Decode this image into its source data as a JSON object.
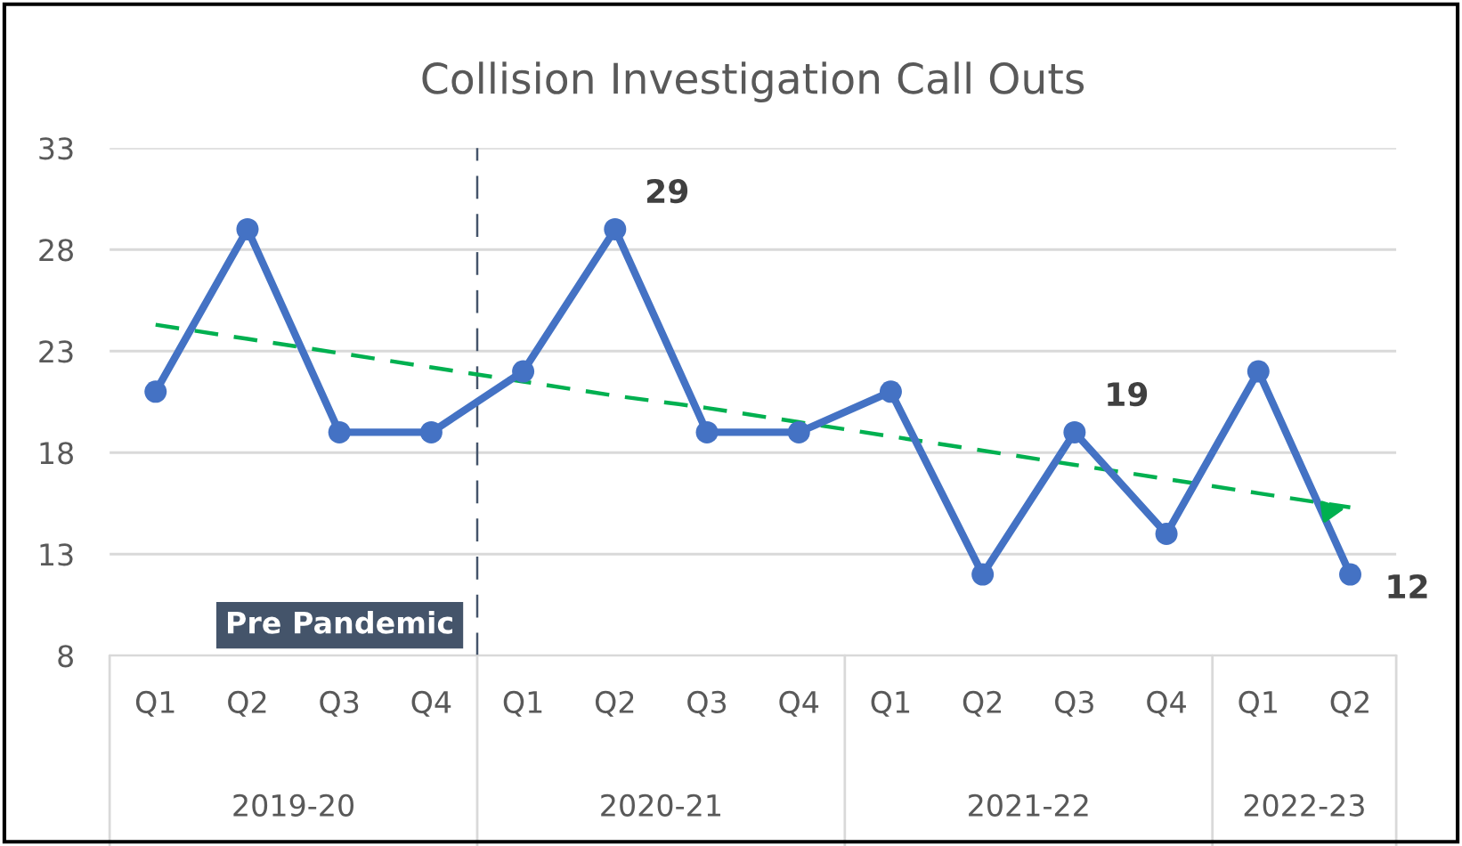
{
  "chart_data": {
    "type": "line",
    "title": "Collision Investigation Call Outs",
    "categories": [
      "Q1",
      "Q2",
      "Q3",
      "Q4",
      "Q1",
      "Q2",
      "Q3",
      "Q4",
      "Q1",
      "Q2",
      "Q3",
      "Q4",
      "Q1",
      "Q2"
    ],
    "series": [
      {
        "color": "#4472c4",
        "marker": "circle",
        "line_style": "solid",
        "values": [
          21,
          29,
          19,
          19,
          22,
          29,
          19,
          19,
          21,
          12,
          19,
          14,
          22,
          12
        ],
        "value_labels": [
          null,
          null,
          null,
          null,
          null,
          "29",
          null,
          null,
          null,
          null,
          "19",
          null,
          null,
          "12"
        ]
      },
      {
        "color": "#00b050",
        "marker": "none",
        "line_style": "dashed",
        "values": [
          24.3,
          23.6,
          22.9,
          22.2,
          21.5,
          20.8,
          20.2,
          19.5,
          18.8,
          18.1,
          17.4,
          16.7,
          16.0,
          15.3
        ]
      }
    ],
    "ylim": [
      8,
      33
    ],
    "yticks": [
      8,
      13,
      18,
      23,
      28,
      33
    ],
    "grid": "y",
    "legend": false,
    "annotations": [
      "2019-20",
      "2020-21",
      "2021-22",
      "2022-23",
      "Pre Pandemic"
    ]
  }
}
